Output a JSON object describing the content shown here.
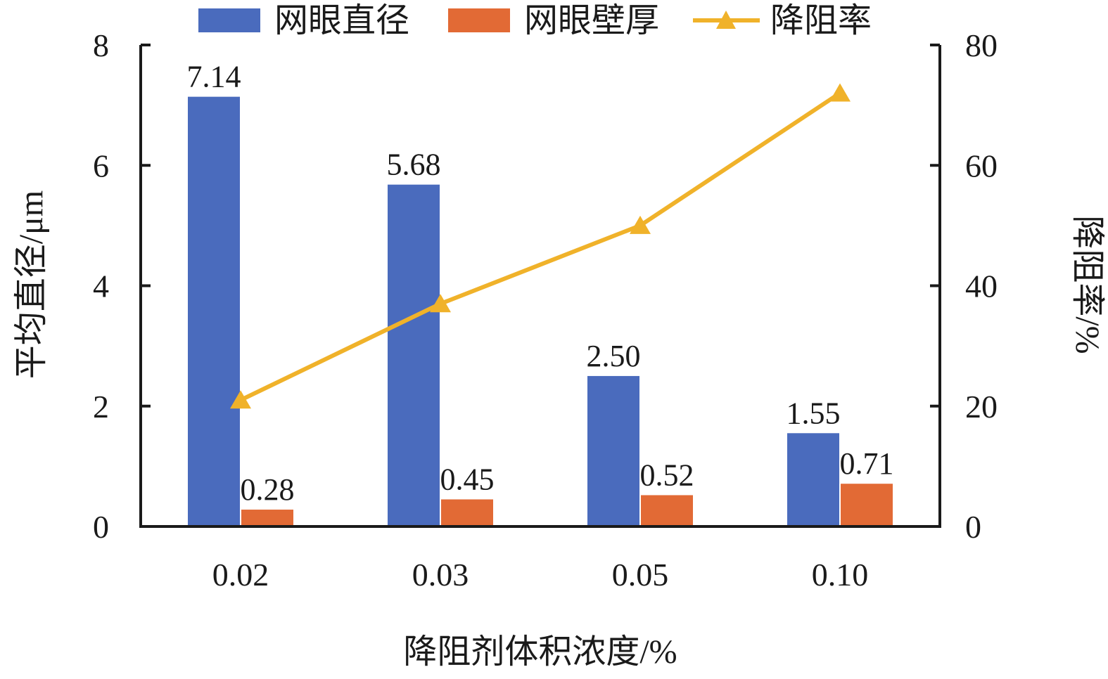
{
  "chart_data": {
    "type": "bar",
    "categories": [
      "0.02",
      "0.03",
      "0.05",
      "0.10"
    ],
    "xlabel": "降阻剂体积浓度/%",
    "ylabel": "平均直径/μm",
    "y2label": "降阻率/%",
    "ylim": [
      0,
      8
    ],
    "y2lim": [
      0,
      80
    ],
    "yticks": [
      "0",
      "2",
      "4",
      "6",
      "8"
    ],
    "y2ticks": [
      "0",
      "20",
      "40",
      "60",
      "80"
    ],
    "grid": false,
    "legend_position": "top",
    "series": [
      {
        "name": "网眼直径",
        "type": "bar",
        "axis": "left",
        "color": "#4a6bbd",
        "values": [
          7.14,
          5.68,
          2.5,
          1.55
        ],
        "labels": [
          "7.14",
          "5.68",
          "2.50",
          "1.55"
        ]
      },
      {
        "name": "网眼壁厚",
        "type": "bar",
        "axis": "left",
        "color": "#e26a35",
        "values": [
          0.28,
          0.45,
          0.52,
          0.71
        ],
        "labels": [
          "0.28",
          "0.45",
          "0.52",
          "0.71"
        ]
      },
      {
        "name": "降阻率",
        "type": "line",
        "axis": "right",
        "marker": "triangle",
        "color": "#f0b22a",
        "values": [
          21,
          37,
          50,
          72
        ]
      }
    ]
  }
}
